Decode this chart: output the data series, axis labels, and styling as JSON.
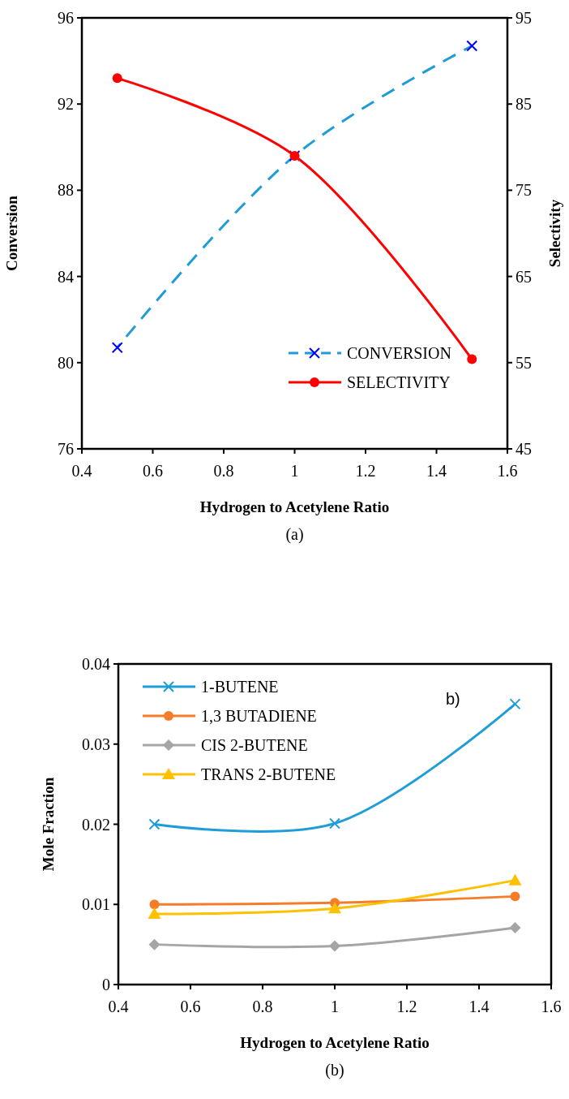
{
  "chart_data": [
    {
      "type": "line",
      "xlabel": "Hydrogen to Acetylene Ratio",
      "ylabel": "Conversion",
      "y2label": "Selectivity",
      "x": [
        0.5,
        1,
        1.5
      ],
      "xlim": [
        0.4,
        1.6
      ],
      "xticks": [
        0.4,
        0.6,
        0.8,
        1,
        1.2,
        1.4,
        1.6
      ],
      "ylim": [
        76,
        96
      ],
      "yticks": [
        76,
        80,
        84,
        88,
        92,
        96
      ],
      "y2lim": [
        45,
        95
      ],
      "y2ticks": [
        45,
        55,
        65,
        75,
        85,
        95
      ],
      "legend": "bottom right",
      "grid": false,
      "series": [
        {
          "name": "CONVERSION",
          "color": "#1f9bd7",
          "values": [
            80.7,
            89.6,
            94.7
          ],
          "marker": "cross",
          "line_style": "dashed"
        },
        {
          "name": "SELECTIVITY",
          "color": "#ff0000",
          "values": [
            88.0,
            79.0,
            55.4
          ],
          "marker": "circle",
          "line_style": "solid",
          "axis": "y2"
        }
      ],
      "annotations": [
        "(a)"
      ]
    },
    {
      "type": "line",
      "xlabel": "Hydrogen to Acetylene Ratio",
      "ylabel": "Mole Fraction",
      "x": [
        0.5,
        1,
        1.5
      ],
      "xlim": [
        0.4,
        1.6
      ],
      "xticks": [
        0.4,
        0.6,
        0.8,
        1,
        1.2,
        1.4,
        1.6
      ],
      "ylim": [
        0,
        0.04
      ],
      "yticks": [
        0,
        0.01,
        0.02,
        0.03,
        0.04
      ],
      "legend": "top left",
      "grid": false,
      "series": [
        {
          "name": "1-BUTENE",
          "color": "#1f9dd9",
          "values": [
            0.02,
            0.0201,
            0.035
          ],
          "marker": "cross"
        },
        {
          "name": "1,3 BUTADIENE",
          "color": "#f47c2a",
          "values": [
            0.01,
            0.0102,
            0.011
          ],
          "marker": "circle"
        },
        {
          "name": "CIS 2-BUTENE",
          "color": "#a5a5a5",
          "values": [
            0.005,
            0.0048,
            0.0071
          ],
          "marker": "diamond"
        },
        {
          "name": "TRANS 2-BUTENE",
          "color": "#ffc000",
          "values": [
            0.0088,
            0.0095,
            0.013
          ],
          "marker": "triangle"
        }
      ],
      "annotations": [
        "b)",
        "(b)"
      ]
    }
  ]
}
